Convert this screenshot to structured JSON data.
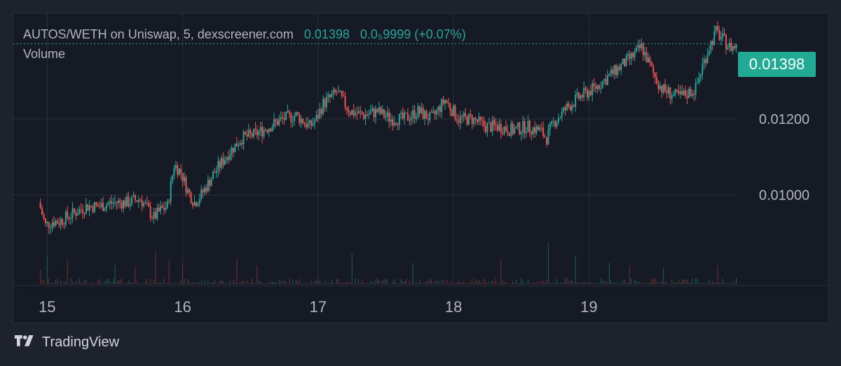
{
  "legend": {
    "symbol_text": "AUTOS/WETH on Uniswap, 5, dexscreener.com",
    "last_price": "0.01398",
    "change_text": "0.0₅9999 (+0.07%)",
    "volume_label": "Volume"
  },
  "price_badge": "0.01398",
  "footer": {
    "brand": "TradingView",
    "logo_icon": "tradingview-logo-icon"
  },
  "colors": {
    "up": "#26a69a",
    "down": "#ef5350",
    "grid": "#2a2e39",
    "axis_text": "#b2b5be",
    "badge": "#22ab94"
  },
  "chart_data": {
    "type": "candlestick",
    "ylim": [
      0.0087,
      0.0146
    ],
    "y_ticks": [
      "0.01200",
      "0.01000"
    ],
    "y_tick_values": [
      0.012,
      0.01
    ],
    "x_ticks": [
      "15",
      "16",
      "17",
      "18",
      "19"
    ],
    "x_tick_positions": [
      0.05,
      1.05,
      2.05,
      3.05,
      4.05
    ],
    "xlim": [
      -0.2,
      5.15
    ],
    "last_price_line": 0.01398,
    "price_path": [
      [
        0.0,
        0.0098
      ],
      [
        0.05,
        0.0092
      ],
      [
        0.1,
        0.0093
      ],
      [
        0.15,
        0.0093
      ],
      [
        0.25,
        0.0095
      ],
      [
        0.35,
        0.0097
      ],
      [
        0.45,
        0.0097
      ],
      [
        0.55,
        0.0098
      ],
      [
        0.65,
        0.0098
      ],
      [
        0.75,
        0.0099
      ],
      [
        0.85,
        0.0094
      ],
      [
        0.9,
        0.0096
      ],
      [
        0.95,
        0.0097
      ],
      [
        1.0,
        0.0108
      ],
      [
        1.05,
        0.0106
      ],
      [
        1.1,
        0.0101
      ],
      [
        1.15,
        0.0098
      ],
      [
        1.2,
        0.01
      ],
      [
        1.25,
        0.0103
      ],
      [
        1.3,
        0.0106
      ],
      [
        1.4,
        0.0111
      ],
      [
        1.5,
        0.0115
      ],
      [
        1.6,
        0.0116
      ],
      [
        1.7,
        0.0118
      ],
      [
        1.8,
        0.012
      ],
      [
        1.9,
        0.0121
      ],
      [
        2.0,
        0.0118
      ],
      [
        2.05,
        0.012
      ],
      [
        2.1,
        0.0124
      ],
      [
        2.2,
        0.0127
      ],
      [
        2.3,
        0.0122
      ],
      [
        2.4,
        0.0121
      ],
      [
        2.5,
        0.0122
      ],
      [
        2.6,
        0.012
      ],
      [
        2.7,
        0.012
      ],
      [
        2.8,
        0.0122
      ],
      [
        2.9,
        0.012
      ],
      [
        3.0,
        0.0125
      ],
      [
        3.1,
        0.012
      ],
      [
        3.2,
        0.012
      ],
      [
        3.3,
        0.0118
      ],
      [
        3.4,
        0.0118
      ],
      [
        3.5,
        0.0117
      ],
      [
        3.6,
        0.0118
      ],
      [
        3.7,
        0.0117
      ],
      [
        3.75,
        0.0115
      ],
      [
        3.8,
        0.0119
      ],
      [
        3.9,
        0.0123
      ],
      [
        4.0,
        0.0126
      ],
      [
        4.1,
        0.0128
      ],
      [
        4.2,
        0.0131
      ],
      [
        4.3,
        0.0134
      ],
      [
        4.4,
        0.0137
      ],
      [
        4.45,
        0.0139
      ],
      [
        4.5,
        0.0135
      ],
      [
        4.55,
        0.0131
      ],
      [
        4.6,
        0.0128
      ],
      [
        4.65,
        0.0127
      ],
      [
        4.7,
        0.0126
      ],
      [
        4.75,
        0.0126
      ],
      [
        4.8,
        0.0127
      ],
      [
        4.85,
        0.0128
      ],
      [
        4.9,
        0.0134
      ],
      [
        4.95,
        0.0139
      ],
      [
        5.0,
        0.0143
      ],
      [
        5.05,
        0.0141
      ],
      [
        5.1,
        0.0139
      ],
      [
        5.15,
        0.0139
      ]
    ],
    "volume_spikes": [
      [
        0.0,
        0.3
      ],
      [
        0.05,
        0.6
      ],
      [
        0.2,
        0.5
      ],
      [
        0.55,
        0.4
      ],
      [
        0.7,
        0.35
      ],
      [
        0.85,
        0.7
      ],
      [
        0.95,
        0.5
      ],
      [
        1.05,
        0.45
      ],
      [
        1.45,
        0.55
      ],
      [
        1.6,
        0.4
      ],
      [
        2.3,
        0.65
      ],
      [
        2.75,
        0.45
      ],
      [
        3.4,
        0.55
      ],
      [
        3.75,
        0.9
      ],
      [
        3.95,
        0.6
      ],
      [
        4.2,
        0.45
      ],
      [
        4.35,
        0.4
      ],
      [
        4.6,
        0.35
      ],
      [
        5.0,
        0.4
      ]
    ]
  }
}
